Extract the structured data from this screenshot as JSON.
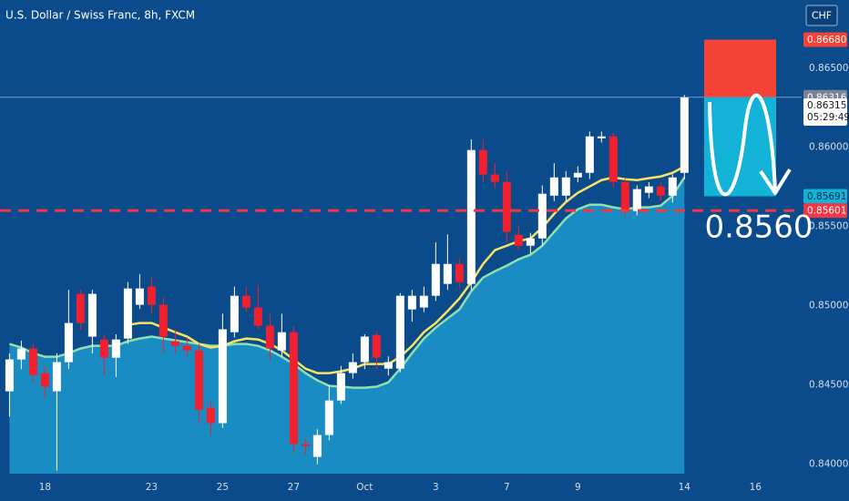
{
  "chart_data": {
    "type": "candlestick",
    "title": "U.S. Dollar / Swiss Franc, 8h, FXCM",
    "currency": "CHF",
    "x": [
      0,
      1,
      2,
      3,
      4,
      5,
      6,
      7,
      8,
      9,
      10,
      11,
      12,
      13,
      14,
      15,
      16,
      17,
      18,
      19,
      20,
      21,
      22,
      23,
      24,
      25,
      26,
      27,
      28,
      29,
      30,
      31,
      32,
      33,
      34,
      35,
      36,
      37,
      38,
      39,
      40,
      41,
      42,
      43,
      44,
      45,
      46,
      47,
      48,
      49,
      50,
      51,
      52,
      53,
      54,
      55,
      56,
      57
    ],
    "open": [
      0.8446,
      0.84661,
      0.8473,
      0.84575,
      0.8446,
      0.84644,
      0.85075,
      0.84805,
      0.84787,
      0.84672,
      0.84793,
      0.85006,
      0.85121,
      0.85006,
      0.84776,
      0.84747,
      0.84718,
      0.84356,
      0.84259,
      0.84833,
      0.85063,
      0.84989,
      0.84874,
      0.84718,
      0.84833,
      0.84127,
      0.84046,
      0.84184,
      0.84402,
      0.84575,
      0.84644,
      0.84816,
      0.84603,
      0.84603,
      0.84977,
      0.84989,
      0.85063,
      0.85138,
      0.85264,
      0.85138,
      0.85983,
      0.85828,
      0.85782,
      0.85448,
      0.85379,
      0.85425,
      0.85695,
      0.85695,
      0.8581,
      0.85839,
      0.86057,
      0.86069,
      0.85782,
      0.85598,
      0.85713,
      0.85753,
      0.85695,
      0.85839
    ],
    "high": [
      0.847,
      0.8478,
      0.8476,
      0.8462,
      0.847,
      0.851,
      0.851,
      0.851,
      0.8482,
      0.8482,
      0.8515,
      0.852,
      0.8518,
      0.8505,
      0.8485,
      0.848,
      0.8476,
      0.844,
      0.8495,
      0.8512,
      0.8512,
      0.8513,
      0.8495,
      0.8495,
      0.8487,
      0.8416,
      0.8422,
      0.845,
      0.8462,
      0.847,
      0.8482,
      0.8484,
      0.8468,
      0.8508,
      0.851,
      0.8512,
      0.854,
      0.8545,
      0.853,
      0.8605,
      0.8605,
      0.859,
      0.8585,
      0.855,
      0.8546,
      0.8576,
      0.859,
      0.8585,
      0.8588,
      0.861,
      0.861,
      0.8609,
      0.858,
      0.8576,
      0.8578,
      0.8578,
      0.8583,
      0.8633
    ],
    "low": [
      0.843,
      0.846,
      0.8452,
      0.8442,
      0.8396,
      0.846,
      0.8485,
      0.847,
      0.8456,
      0.8455,
      0.8476,
      0.8498,
      0.8495,
      0.847,
      0.847,
      0.8468,
      0.8425,
      0.8418,
      0.8423,
      0.848,
      0.8496,
      0.8485,
      0.8465,
      0.8468,
      0.8407,
      0.8406,
      0.84,
      0.8415,
      0.8438,
      0.8454,
      0.846,
      0.846,
      0.8456,
      0.8458,
      0.849,
      0.8496,
      0.8503,
      0.851,
      0.8511,
      0.851,
      0.8578,
      0.8574,
      0.854,
      0.8535,
      0.8533,
      0.8538,
      0.8566,
      0.8566,
      0.8578,
      0.858,
      0.8603,
      0.8575,
      0.8556,
      0.8557,
      0.8568,
      0.8566,
      0.8565,
      0.858
    ],
    "close": [
      0.84661,
      0.8473,
      0.84563,
      0.84489,
      0.84644,
      0.84891,
      0.84891,
      0.85075,
      0.84672,
      0.84787,
      0.85109,
      0.85109,
      0.85006,
      0.84805,
      0.84747,
      0.84718,
      0.84345,
      0.84259,
      0.84851,
      0.85063,
      0.84989,
      0.84874,
      0.8473,
      0.84833,
      0.84127,
      0.84115,
      0.84184,
      0.84402,
      0.84575,
      0.84644,
      0.84805,
      0.84672,
      0.84644,
      0.85063,
      0.85063,
      0.85063,
      0.85264,
      0.85264,
      0.85149,
      0.85983,
      0.85828,
      0.85782,
      0.85466,
      0.85379,
      0.85425,
      0.85707,
      0.8581,
      0.8581,
      0.85839,
      0.86069,
      0.86069,
      0.85782,
      0.85598,
      0.85736,
      0.85753,
      0.85695,
      0.8581,
      0.86315
    ],
    "up_color": "#ffffff",
    "down_color": "#f0202e",
    "moving_averages": [
      {
        "color": "#8fe0ad",
        "fill": "#1a8cc4",
        "values": [
          0.84759,
          0.84736,
          0.84701,
          0.84678,
          0.84678,
          0.84701,
          0.8473,
          0.84747,
          0.84747,
          0.84747,
          0.84776,
          0.84793,
          0.84805,
          0.84793,
          0.84782,
          0.8477,
          0.84759,
          0.84747,
          0.84747,
          0.84759,
          0.84759,
          0.84747,
          0.84718,
          0.84678,
          0.84632,
          0.84575,
          0.84529,
          0.84494,
          0.84489,
          0.84483,
          0.84483,
          0.84489,
          0.84517,
          0.84603,
          0.84701,
          0.84793,
          0.84862,
          0.8492,
          0.84977,
          0.85092,
          0.85178,
          0.85218,
          0.85253,
          0.85293,
          0.85322,
          0.85379,
          0.85466,
          0.85552,
          0.85609,
          0.85638,
          0.85638,
          0.85621,
          0.85609,
          0.85621,
          0.85621,
          0.85632,
          0.85695,
          0.8581
        ]
      },
      {
        "color": "#f7e463",
        "values": [
          null,
          null,
          null,
          null,
          null,
          null,
          null,
          null,
          null,
          null,
          0.84879,
          0.84891,
          0.84891,
          0.84862,
          0.84833,
          0.84805,
          0.84759,
          0.84736,
          0.84747,
          0.84776,
          0.84793,
          0.84787,
          0.84759,
          0.84718,
          0.84661,
          0.84603,
          0.84575,
          0.84575,
          0.84586,
          0.84603,
          0.84632,
          0.84632,
          0.84632,
          0.84678,
          0.84747,
          0.84833,
          0.84891,
          0.84966,
          0.85046,
          0.85149,
          0.85264,
          0.85351,
          0.85379,
          0.85408,
          0.85425,
          0.85494,
          0.8558,
          0.85655,
          0.85713,
          0.85753,
          0.85793,
          0.8581,
          0.85799,
          0.85793,
          0.85805,
          0.85816,
          0.85839,
          0.85879
        ]
      }
    ],
    "xlim": [
      -0.8,
      66.9
    ],
    "xticks": [
      {
        "value": 3,
        "label": "18"
      },
      {
        "value": 12,
        "label": "23"
      },
      {
        "value": 18,
        "label": "25"
      },
      {
        "value": 24,
        "label": "27"
      },
      {
        "value": 30,
        "label": "Oct"
      },
      {
        "value": 36,
        "label": "3"
      },
      {
        "value": 42,
        "label": "7"
      },
      {
        "value": 48,
        "label": "9"
      },
      {
        "value": 57,
        "label": "14"
      },
      {
        "value": 63,
        "label": "16"
      }
    ],
    "ylim": [
      0.8394,
      0.8693
    ],
    "yticks": [
      {
        "value": 0.865,
        "label": "0.86500"
      },
      {
        "value": 0.86,
        "label": "0.86000"
      },
      {
        "value": 0.855,
        "label": "0.85500"
      },
      {
        "value": 0.85,
        "label": "0.85000"
      },
      {
        "value": 0.845,
        "label": "0.84500"
      },
      {
        "value": 0.84,
        "label": "0.84000"
      }
    ],
    "last_price": 0.86315,
    "countdown": "05:29:49",
    "position": {
      "stop": {
        "value": 0.8668,
        "label": "0.86680"
      },
      "entry": 0.86316,
      "target": 0.85691,
      "stop_color": "#f44336",
      "target_color": "#12b3d6"
    },
    "level": 0.85601,
    "level_color": "#f23645",
    "annotation": "0.8560"
  }
}
